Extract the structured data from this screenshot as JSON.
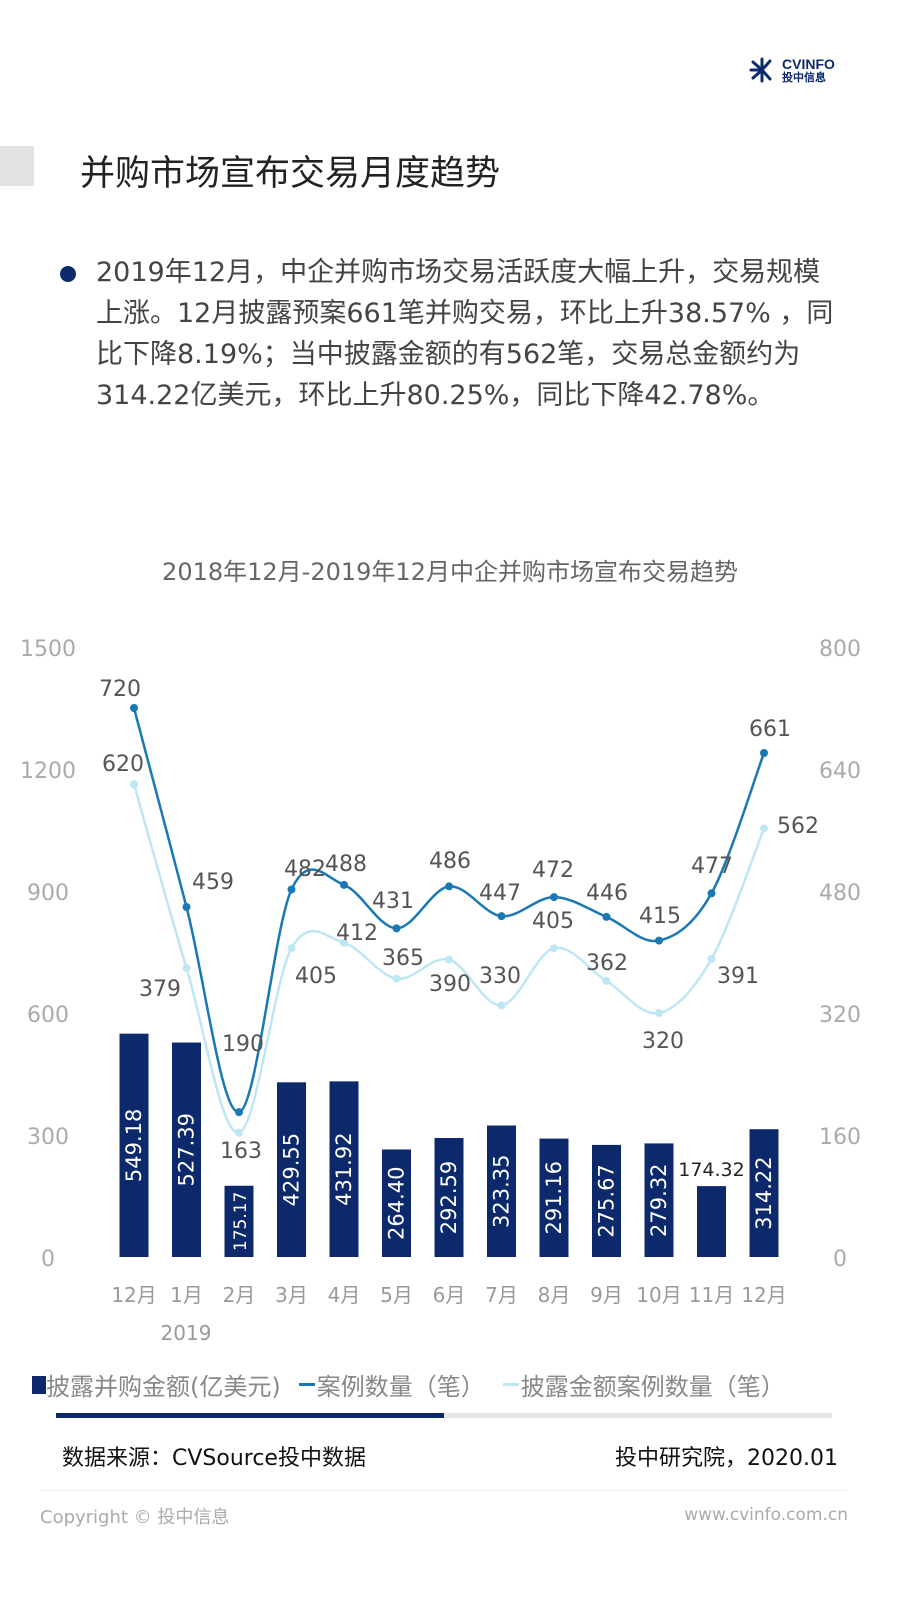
{
  "watermark": "CVSource",
  "watermark_sub": "投中数据",
  "logo": {
    "name": "CVINFO",
    "sub": "投中信息"
  },
  "title": "并购市场宣布交易月度趋势",
  "bullet": "2019年12月，中企并购市场交易活跃度大幅上升，交易规模上涨。12月披露预案661笔并购交易，环比上升38.57% ，同比下降8.19%；当中披露金额的有562笔，交易总金额约为314.22亿美元，环比上升80.25%，同比下降42.78%。",
  "chart_data": {
    "type": "bar+line",
    "title": "2018年12月-2019年12月中企并购市场宣布交易趋势",
    "categories": [
      "12月",
      "1月",
      "2月",
      "3月",
      "4月",
      "5月",
      "6月",
      "7月",
      "8月",
      "9月",
      "10月",
      "11月",
      "12月"
    ],
    "year_label": "2019",
    "left_axis": {
      "ylim": [
        0,
        1500
      ],
      "ticks": [
        "0",
        "300",
        "600",
        "900",
        "1200",
        "1500"
      ]
    },
    "right_axis": {
      "ylim": [
        0,
        800
      ],
      "ticks": [
        "0",
        "160",
        "320",
        "480",
        "640",
        "800"
      ]
    },
    "series": [
      {
        "name": "披露并购金额(亿美元)",
        "type": "bar",
        "axis": "left",
        "color": "#0c2a6b",
        "values": [
          549.18,
          527.39,
          175.17,
          429.55,
          431.92,
          264.4,
          292.59,
          323.35,
          291.16,
          275.67,
          279.32,
          174.32,
          314.22
        ],
        "labels": [
          "549.18",
          "527.39",
          "175.17",
          "429.55",
          "431.92",
          "264.40",
          "292.59",
          "323.35",
          "291.16",
          "275.67",
          "279.32",
          "174.32",
          "314.22"
        ]
      },
      {
        "name": "案例数量（笔）",
        "type": "line",
        "axis": "right",
        "color": "#1a78b4",
        "values": [
          720,
          459,
          190,
          482,
          488,
          431,
          486,
          447,
          472,
          446,
          415,
          477,
          661
        ]
      },
      {
        "name": "披露金额案例数量（笔）",
        "type": "line",
        "axis": "right",
        "color": "#bfe6f3",
        "values": [
          620,
          379,
          163,
          405,
          412,
          365,
          390,
          330,
          405,
          362,
          320,
          391,
          562
        ]
      }
    ],
    "legend": "bottom"
  },
  "progress_percent": 50,
  "source": "数据来源：CVSource投中数据",
  "institute": "投中研究院，2020.01",
  "copyright": "Copyright © 投中信息",
  "website": "www.cvinfo.com.cn"
}
